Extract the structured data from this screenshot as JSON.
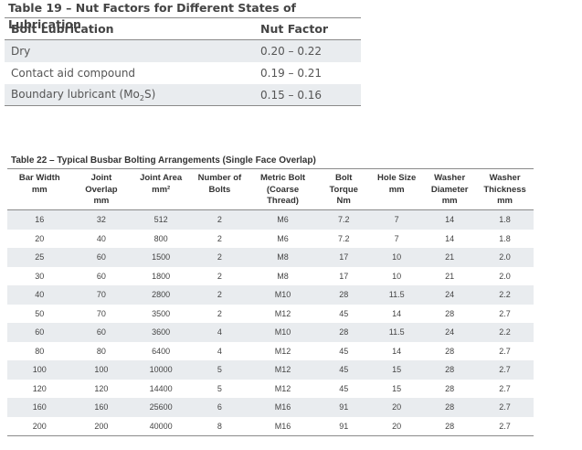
{
  "table19": {
    "title": "Table 19 – Nut Factors for Different States of Lubrication",
    "headers": [
      "Bolt Lubrication",
      "Nut Factor"
    ],
    "rows": [
      {
        "label": "Dry",
        "value": "0.20 – 0.22"
      },
      {
        "label": "Contact aid compound",
        "value": "0.19 – 0.21"
      },
      {
        "label_pre": "Boundary lubricant (Mo",
        "label_sub": "2",
        "label_post": "S)",
        "value": "0.15 – 0.16"
      }
    ]
  },
  "table22": {
    "title": "Table 22 – Typical Busbar Bolting Arrangements (Single Face Overlap)",
    "headers": [
      "Bar Width\nmm",
      "Joint\nOverlap\nmm",
      "Joint Area\nmm²",
      "Number of\nBolts",
      "Metric Bolt\n(Coarse\nThread)",
      "Bolt\nTorque\nNm",
      "Hole Size\nmm",
      "Washer\nDiameter\nmm",
      "Washer\nThickness\nmm"
    ],
    "rows": [
      [
        "16",
        "32",
        "512",
        "2",
        "M6",
        "7.2",
        "7",
        "14",
        "1.8"
      ],
      [
        "20",
        "40",
        "800",
        "2",
        "M6",
        "7.2",
        "7",
        "14",
        "1.8"
      ],
      [
        "25",
        "60",
        "1500",
        "2",
        "M8",
        "17",
        "10",
        "21",
        "2.0"
      ],
      [
        "30",
        "60",
        "1800",
        "2",
        "M8",
        "17",
        "10",
        "21",
        "2.0"
      ],
      [
        "40",
        "70",
        "2800",
        "2",
        "M10",
        "28",
        "11.5",
        "24",
        "2.2"
      ],
      [
        "50",
        "70",
        "3500",
        "2",
        "M12",
        "45",
        "14",
        "28",
        "2.7"
      ],
      [
        "60",
        "60",
        "3600",
        "4",
        "M10",
        "28",
        "11.5",
        "24",
        "2.2"
      ],
      [
        "80",
        "80",
        "6400",
        "4",
        "M12",
        "45",
        "14",
        "28",
        "2.7"
      ],
      [
        "100",
        "100",
        "10000",
        "5",
        "M12",
        "45",
        "15",
        "28",
        "2.7"
      ],
      [
        "120",
        "120",
        "14400",
        "5",
        "M12",
        "45",
        "15",
        "28",
        "2.7"
      ],
      [
        "160",
        "160",
        "25600",
        "6",
        "M16",
        "91",
        "20",
        "28",
        "2.7"
      ],
      [
        "200",
        "200",
        "40000",
        "8",
        "M16",
        "91",
        "20",
        "28",
        "2.7"
      ]
    ]
  }
}
